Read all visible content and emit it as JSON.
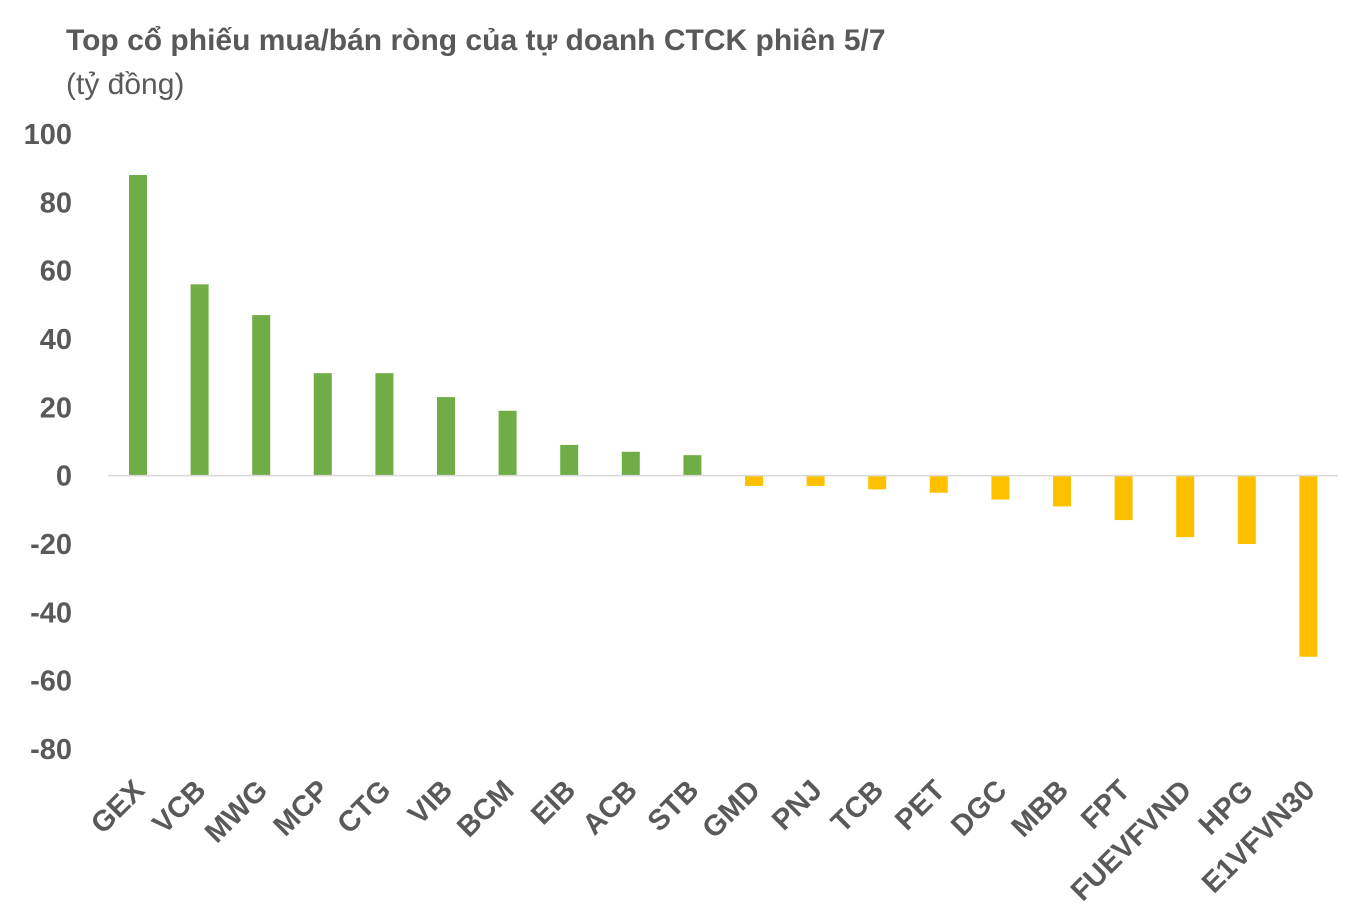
{
  "chart_data": {
    "type": "bar",
    "title": "Top cổ phiếu mua/bán ròng của tự doanh CTCK phiên 5/7",
    "subtitle": "(tỷ đồng)",
    "xlabel": "",
    "ylabel": "",
    "ylim": [
      -80,
      100
    ],
    "yticks": [
      100,
      80,
      60,
      40,
      20,
      0,
      -20,
      -40,
      -60,
      -80
    ],
    "grid": false,
    "legend": "none",
    "positive_color": "#70AD47",
    "negative_color": "#FFC000",
    "categories": [
      "GEX",
      "VCB",
      "MWG",
      "MCP",
      "CTG",
      "VIB",
      "BCM",
      "EIB",
      "ACB",
      "STB",
      "GMD",
      "PNJ",
      "TCB",
      "PET",
      "DGC",
      "MBB",
      "FPT",
      "FUEVFVND",
      "HPG",
      "E1VFVN30"
    ],
    "values": [
      88,
      56,
      47,
      30,
      30,
      23,
      19,
      9,
      7,
      6,
      -3,
      -3,
      -4,
      -5,
      -7,
      -9,
      -13,
      -18,
      -20,
      -53
    ]
  }
}
